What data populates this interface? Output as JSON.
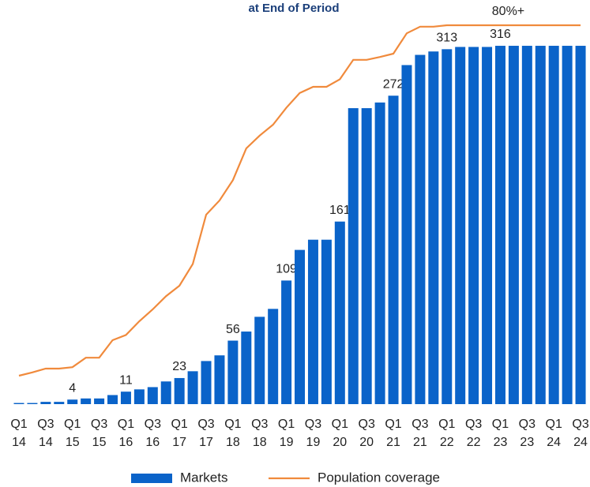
{
  "chart_data": {
    "type": "bar",
    "title": "at End of Period",
    "categories": [
      "Q1 14",
      null,
      "Q3 14",
      null,
      "Q1 15",
      null,
      "Q3 15",
      null,
      "Q1 16",
      null,
      "Q3 16",
      null,
      "Q1 17",
      null,
      "Q3 17",
      null,
      "Q1 18",
      null,
      "Q3 18",
      null,
      "Q1 19",
      null,
      "Q3 19",
      null,
      "Q1 20",
      null,
      "Q3 20",
      null,
      "Q1 21",
      null,
      "Q3 21",
      null,
      "Q1 22",
      null,
      "Q3 22",
      null,
      "Q1 23",
      null,
      "Q3 23",
      null,
      "Q1 24",
      null,
      "Q3 24"
    ],
    "series": [
      {
        "name": "Markets",
        "color": "#0a63c9",
        "values": [
          1,
          1,
          2,
          2,
          4,
          5,
          5,
          8,
          11,
          13,
          15,
          20,
          23,
          29,
          38,
          43,
          56,
          64,
          77,
          84,
          109,
          136,
          145,
          145,
          161,
          261,
          261,
          266,
          272,
          299,
          308,
          311,
          313,
          315,
          315,
          315,
          316,
          316,
          316,
          316,
          316,
          316,
          316
        ],
        "value_labels": [
          null,
          null,
          null,
          null,
          "4",
          null,
          null,
          null,
          "11",
          null,
          null,
          null,
          "23",
          null,
          null,
          null,
          "56",
          null,
          null,
          null,
          "109",
          null,
          null,
          null,
          "161",
          null,
          null,
          null,
          "272",
          null,
          null,
          null,
          "313",
          null,
          null,
          null,
          "316",
          null,
          null,
          null,
          null,
          null,
          null
        ]
      },
      {
        "name": "Population coverage",
        "color": "#f08a3c",
        "axis": "y2",
        "type": "line",
        "values": [
          6,
          6.7,
          7.5,
          7.5,
          7.8,
          9.8,
          9.8,
          13.5,
          14.6,
          17.5,
          20,
          22.8,
          25,
          29.6,
          40,
          43,
          47.3,
          54,
          56.7,
          59,
          62.6,
          65.7,
          67,
          67,
          68.6,
          72.7,
          72.7,
          73.3,
          74,
          78.3,
          79.7,
          79.7,
          80,
          80,
          80,
          80,
          80,
          80,
          80,
          80,
          80,
          80,
          80
        ],
        "value_labels": [
          null,
          null,
          null,
          null,
          null,
          null,
          null,
          null,
          null,
          null,
          null,
          null,
          null,
          null,
          null,
          null,
          null,
          null,
          null,
          null,
          null,
          null,
          null,
          null,
          null,
          null,
          null,
          null,
          null,
          null,
          null,
          null,
          null,
          null,
          null,
          null,
          "80%+",
          null,
          null,
          null,
          null,
          null,
          null
        ]
      }
    ],
    "ylim": [
      0,
      355
    ],
    "y2lim": [
      0,
      85
    ],
    "legend": "bottom"
  }
}
